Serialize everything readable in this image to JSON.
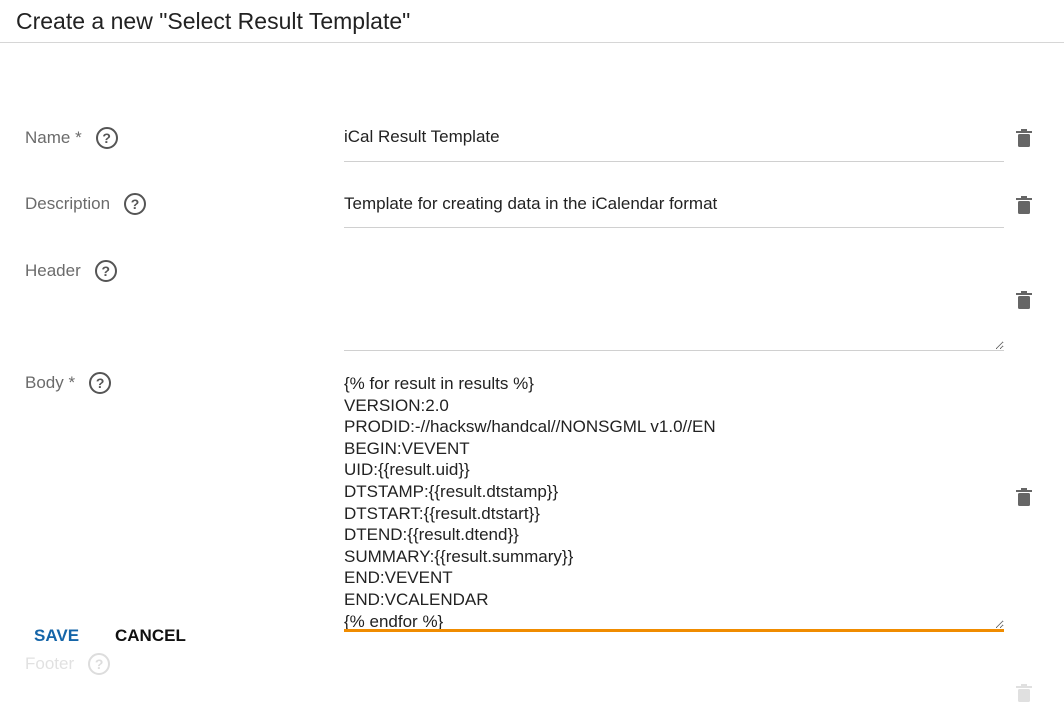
{
  "dialog": {
    "title": "Create a new \"Select Result Template\""
  },
  "fields": {
    "name": {
      "label": "Name *",
      "value": "iCal Result Template"
    },
    "description": {
      "label": "Description",
      "value": "Template for creating data in the iCalendar format"
    },
    "header": {
      "label": "Header",
      "value": ""
    },
    "body": {
      "label": "Body *",
      "value": "{% for result in results %}\nVERSION:2.0\nPRODID:-//hacksw/handcal//NONSGML v1.0//EN\nBEGIN:VEVENT\nUID:{{result.uid}}\nDTSTAMP:{{result.dtstamp}}\nDTSTART:{{result.dtstart}}\nDTEND:{{result.dtend}}\nSUMMARY:{{result.summary}}\nEND:VEVENT\nEND:VCALENDAR\n{% endfor %}"
    },
    "footer": {
      "label": "Footer"
    }
  },
  "help_glyph": "?",
  "actions": {
    "save": "SAVE",
    "cancel": "CANCEL"
  },
  "colors": {
    "accent": "#f08c00",
    "primary": "#1565a8"
  }
}
